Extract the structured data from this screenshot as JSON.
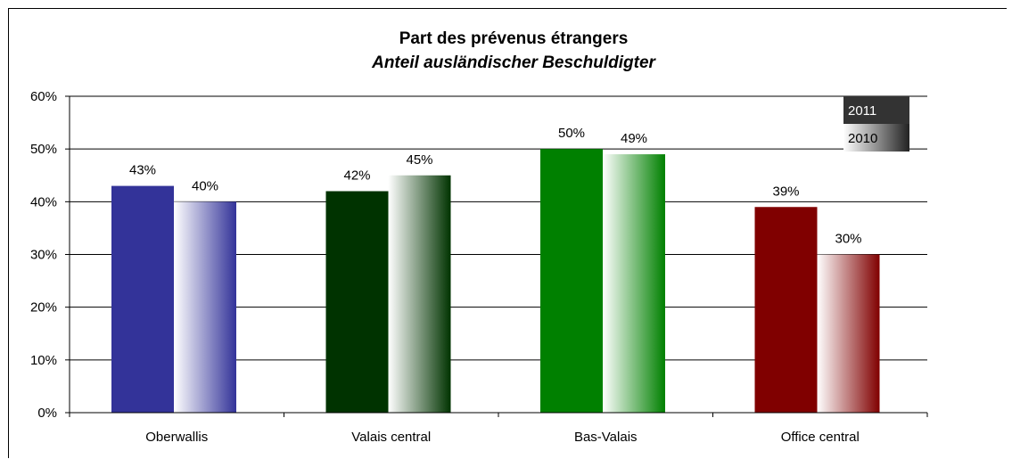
{
  "chart_data": {
    "type": "bar",
    "title": "Part des prévenus étrangers",
    "subtitle": "Anteil ausländischer Beschuldigter",
    "categories": [
      "Oberwallis",
      "Valais central",
      "Bas-Valais",
      "Office central"
    ],
    "series": [
      {
        "name": "2011",
        "values": [
          0.43,
          0.42,
          0.5,
          0.39
        ],
        "labels": [
          "43%",
          "42%",
          "50%",
          "39%"
        ]
      },
      {
        "name": "2010",
        "values": [
          0.4,
          0.45,
          0.49,
          0.3
        ],
        "labels": [
          "40%",
          "45%",
          "49%",
          "30%"
        ]
      }
    ],
    "ylim": [
      0,
      0.6
    ],
    "yticks": [
      0,
      0.1,
      0.2,
      0.3,
      0.4,
      0.5,
      0.6
    ],
    "ytick_labels": [
      "0%",
      "10%",
      "20%",
      "30%",
      "40%",
      "50%",
      "60%"
    ],
    "grid": true,
    "legend_position": "top-right",
    "colors_2011": [
      "#333399",
      "#003300",
      "#008000",
      "#800000"
    ],
    "legend_colors": {
      "2011": "#333333",
      "2010": "#222222"
    }
  }
}
